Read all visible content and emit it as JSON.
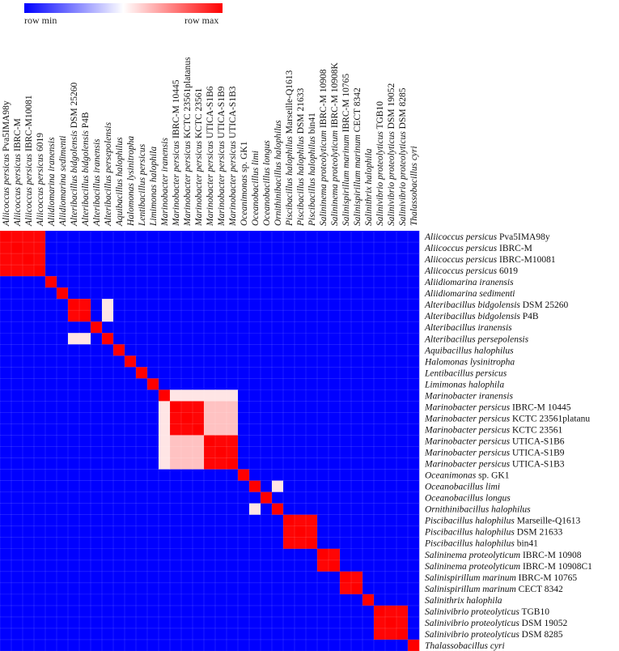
{
  "legend": {
    "min_label": "row min",
    "max_label": "row max"
  },
  "colors": {
    "low": "#0000ff",
    "mid": "#ffffff",
    "high": "#ff0000"
  },
  "chart_data": {
    "type": "heatmap",
    "labels": [
      [
        "Aliicoccus persicus",
        "Pva5IMA98y"
      ],
      [
        "Aliicoccus persicus",
        "IBRC-M"
      ],
      [
        "Aliicoccus persicus",
        "IBRC-M10081"
      ],
      [
        "Aliicoccus persicus",
        "6019"
      ],
      [
        "Aliidiomarina iranensis",
        ""
      ],
      [
        "Aliidiomarina sedimenti",
        ""
      ],
      [
        "Alteribacillus bidgolensis",
        "DSM 25260"
      ],
      [
        "Alteribacillus bidgolensis",
        "P4B"
      ],
      [
        "Alteribacillus iranensis",
        ""
      ],
      [
        "Alteribacillus persepolensis",
        ""
      ],
      [
        "Aquibacillus halophilus",
        ""
      ],
      [
        "Halomonas lysinitropha",
        ""
      ],
      [
        "Lentibacillus persicus",
        ""
      ],
      [
        "Limimonas halophila",
        ""
      ],
      [
        "Marinobacter iranensis",
        ""
      ],
      [
        "Marinobacter persicus",
        "IBRC-M 10445"
      ],
      [
        "Marinobacter persicus",
        "KCTC 23561platanu"
      ],
      [
        "Marinobacter persicus",
        "KCTC 23561"
      ],
      [
        "Marinobacter persicus",
        "UTICA-S1B6"
      ],
      [
        "Marinobacter persicus",
        "UTICA-S1B9"
      ],
      [
        "Marinobacter persicus",
        "UTICA-S1B3"
      ],
      [
        "Oceanimonas",
        "sp. GK1"
      ],
      [
        "Oceanobacillus limi",
        ""
      ],
      [
        "Oceanobacillus longus",
        ""
      ],
      [
        "Ornithinibacillus halophilus",
        ""
      ],
      [
        "Piscibacillus halophilus",
        "Marseille-Q1613"
      ],
      [
        "Piscibacillus halophilus",
        "DSM 21633"
      ],
      [
        "Piscibacillus halophilus",
        "bin41"
      ],
      [
        "Salininema proteolyticum",
        "IBRC-M 10908"
      ],
      [
        "Salininema proteolyticum",
        "IBRC-M 10908C1"
      ],
      [
        "Salinispirillum marinum",
        "IBRC-M 10765"
      ],
      [
        "Salinispirillum marinum",
        "CECT 8342"
      ],
      [
        "Salinithrix halophila",
        ""
      ],
      [
        "Salinivibrio proteolyticus",
        "TGB10"
      ],
      [
        "Salinivibrio proteolyticus",
        "DSM 19052"
      ],
      [
        "Salinivibrio proteolyticus",
        "DSM 8285"
      ],
      [
        "Thalassobacillus cyri",
        ""
      ]
    ],
    "column_labels": [
      [
        "Aliicoccus persicus",
        "Pva5IMA98y"
      ],
      [
        "Aliicoccus persicus",
        "IBRC-M"
      ],
      [
        "Aliicoccus persicus",
        "IBRC-M10081"
      ],
      [
        "Aliicoccus persicus",
        "6019"
      ],
      [
        "Aliidiomarina iranensis",
        ""
      ],
      [
        "Aliidiomarina sedimenti",
        ""
      ],
      [
        "Alteribacillus bidgolensis",
        "DSM 25260"
      ],
      [
        "Alteribacillus bidgolensis",
        "P4B"
      ],
      [
        "Alteribacillus iranensis",
        ""
      ],
      [
        "Alteribacillus persepolensis",
        ""
      ],
      [
        "Aquibacillus halophilus",
        ""
      ],
      [
        "Halomonas lysinitropha",
        ""
      ],
      [
        "Lentibacillus persicus",
        ""
      ],
      [
        "Limimonas halophila",
        ""
      ],
      [
        "Marinobacter iranensis",
        ""
      ],
      [
        "Marinobacter persicus",
        "IBRC-M 10445"
      ],
      [
        "Marinobacter persicus",
        "KCTC 23561platanus"
      ],
      [
        "Marinobacter persicus",
        "KCTC 23561"
      ],
      [
        "Marinobacter persicus",
        "UTICA-S1B6"
      ],
      [
        "Marinobacter persicus",
        "UTICA-S1B9"
      ],
      [
        "Marinobacter persicus",
        "UTICA-S1B3"
      ],
      [
        "Oceanimonas",
        "sp. GK1"
      ],
      [
        "Oceanobacillus limi",
        ""
      ],
      [
        "Oceanobacillus longus",
        ""
      ],
      [
        "Ornithinibacillus halophilus",
        ""
      ],
      [
        "Piscibacillus halophilus",
        "Marseille-Q1613"
      ],
      [
        "Piscibacillus halophilus",
        "DSM 21633"
      ],
      [
        "Piscibacillus halophilus",
        "bin41"
      ],
      [
        "Salininema proteolyticum",
        "IBRC-M 10908"
      ],
      [
        "Salininema proteolyticum",
        "IBRC-M 10908K"
      ],
      [
        "Salinispirillum marinum",
        "IBRC-M 10765"
      ],
      [
        "Salinispirillum marinum",
        "CECT 8342"
      ],
      [
        "Salinithrix halophila",
        ""
      ],
      [
        "Salinivibrio proteolyticus",
        "TGB10"
      ],
      [
        "Salinivibrio proteolyticus",
        "DSM 19052"
      ],
      [
        "Salinivibrio proteolyticus",
        "DSM 8285"
      ],
      [
        "Thalassobacillus cyri",
        ""
      ]
    ],
    "value_range": [
      0,
      1
    ],
    "base_value": 0,
    "diagonal_value": 1,
    "blocks": [
      {
        "indices": [
          0,
          1,
          2,
          3
        ],
        "value": 0.99
      },
      {
        "indices": [
          6,
          7
        ],
        "value": 0.99
      },
      {
        "indices": [
          15,
          16,
          17
        ],
        "value": 0.99
      },
      {
        "indices": [
          18,
          19,
          20
        ],
        "value": 0.99
      },
      {
        "indices": [
          25,
          26,
          27
        ],
        "value": 0.99
      },
      {
        "indices": [
          28,
          29
        ],
        "value": 0.99
      },
      {
        "indices": [
          30,
          31
        ],
        "value": 0.99
      },
      {
        "indices": [
          33,
          34,
          35
        ],
        "value": 0.99
      }
    ],
    "pair_values": [
      {
        "i": 6,
        "j": 9,
        "value": 0.55
      },
      {
        "i": 7,
        "j": 9,
        "value": 0.55
      },
      {
        "i": 22,
        "j": 24,
        "value": 0.55
      },
      {
        "i": 14,
        "j": 15,
        "value": 0.55
      },
      {
        "i": 14,
        "j": 16,
        "value": 0.55
      },
      {
        "i": 14,
        "j": 17,
        "value": 0.55
      },
      {
        "i": 14,
        "j": 18,
        "value": 0.55
      },
      {
        "i": 14,
        "j": 19,
        "value": 0.55
      },
      {
        "i": 14,
        "j": 20,
        "value": 0.55
      },
      {
        "i": 15,
        "j": 18,
        "value": 0.62
      },
      {
        "i": 15,
        "j": 19,
        "value": 0.62
      },
      {
        "i": 15,
        "j": 20,
        "value": 0.62
      },
      {
        "i": 16,
        "j": 18,
        "value": 0.62
      },
      {
        "i": 16,
        "j": 19,
        "value": 0.62
      },
      {
        "i": 16,
        "j": 20,
        "value": 0.62
      },
      {
        "i": 17,
        "j": 18,
        "value": 0.62
      },
      {
        "i": 17,
        "j": 19,
        "value": 0.62
      },
      {
        "i": 17,
        "j": 20,
        "value": 0.62
      }
    ],
    "legend": "top-left colorbar",
    "grid": true
  }
}
